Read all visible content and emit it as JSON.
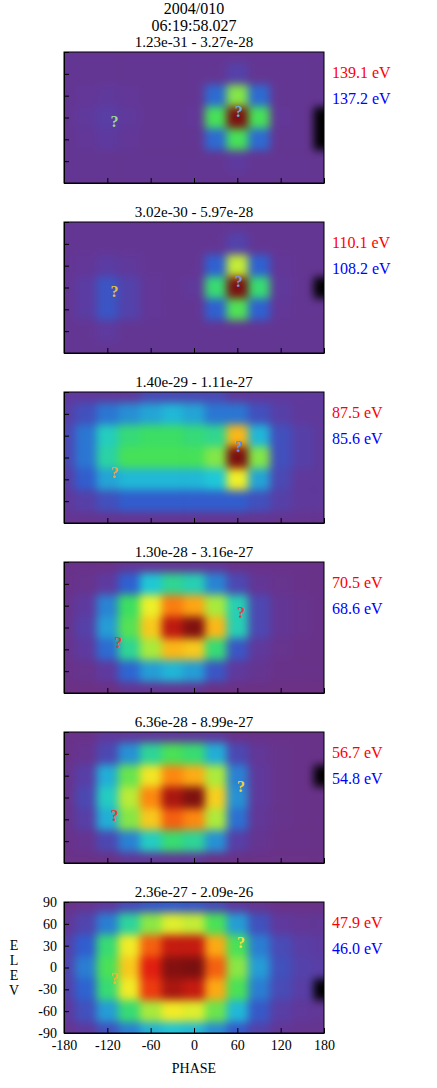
{
  "header": {
    "date": "2004/010",
    "time": "06:19:58.027"
  },
  "chart_data": [
    {
      "type": "heatmap",
      "title": "1.23e-31 - 3.27e-28",
      "zlim": [
        1.23e-31,
        3.27e-28
      ],
      "xlim": [
        -180,
        180
      ],
      "ylim": [
        -90,
        90
      ],
      "xticks": [
        -180,
        -120,
        -60,
        0,
        60,
        120,
        180
      ],
      "yticks": [
        -90,
        -60,
        -30,
        0,
        30,
        60,
        90
      ],
      "tick_labels": false,
      "x": [
        -180,
        -150,
        -120,
        -90,
        -60,
        -30,
        0,
        30,
        60,
        90,
        120,
        150,
        180
      ],
      "y": [
        90,
        60,
        30,
        0,
        -30,
        -60,
        -90
      ],
      "cells": [
        [
          2.5e-31,
          2.5e-31,
          2.5e-31,
          2.5e-31,
          2.5e-31,
          2.5e-31,
          2.5e-31,
          2.5e-31,
          2.5e-31,
          2.5e-31,
          2.5e-31,
          2.5e-31,
          2.5e-31
        ],
        [
          2.5e-31,
          2.5e-31,
          2.5e-31,
          2.5e-31,
          2.5e-31,
          2.5e-31,
          2.5e-31,
          2.5e-31,
          5e-31,
          2.5e-31,
          2.5e-31,
          2.5e-31,
          2.5e-31
        ],
        [
          2.5e-31,
          3e-31,
          3.5e-31,
          3e-31,
          2.5e-31,
          2.5e-31,
          2.5e-31,
          1.5e-30,
          1.5e-29,
          1.5e-30,
          2.5e-31,
          2.5e-31,
          2.5e-31
        ],
        [
          2.5e-31,
          3.5e-31,
          4.5e-31,
          3.5e-31,
          2.5e-31,
          2.5e-31,
          3e-31,
          1e-29,
          3.2e-28,
          1e-29,
          3e-31,
          2.5e-31,
          null
        ],
        [
          2.5e-31,
          3e-31,
          4e-31,
          3e-31,
          2.5e-31,
          2.5e-31,
          2.5e-31,
          1.5e-30,
          1e-29,
          1.5e-30,
          2.5e-31,
          2.5e-31,
          null
        ],
        [
          2.5e-31,
          2.5e-31,
          2.5e-31,
          2.5e-31,
          2.5e-31,
          2.5e-31,
          2.5e-31,
          2.5e-31,
          4e-31,
          2.5e-31,
          2.5e-31,
          2.5e-31,
          2.5e-31
        ],
        [
          2.5e-31,
          2.5e-31,
          2.5e-31,
          2.5e-31,
          2.5e-31,
          2.5e-31,
          2.5e-31,
          2.5e-31,
          2.5e-31,
          2.5e-31,
          2.5e-31,
          2.5e-31,
          2.5e-31
        ]
      ],
      "labels": [
        {
          "text": "139.1 eV",
          "color": "#ff0000"
        },
        {
          "text": "137.2 eV",
          "color": "#0000ff"
        }
      ],
      "annotations": [
        {
          "text": "?",
          "x": -110,
          "y": -5,
          "color": "#a0d890"
        },
        {
          "text": "?",
          "x": 62,
          "y": 8,
          "color": "#70a8e0"
        }
      ]
    },
    {
      "type": "heatmap",
      "title": "3.02e-30 - 5.97e-28",
      "zlim": [
        3.02e-30,
        5.97e-28
      ],
      "xlim": [
        -180,
        180
      ],
      "ylim": [
        -90,
        90
      ],
      "xticks": [
        -180,
        -120,
        -60,
        0,
        60,
        120,
        180
      ],
      "yticks": [
        -90,
        -60,
        -30,
        0,
        30,
        60,
        90
      ],
      "tick_labels": false,
      "x": [
        -180,
        -150,
        -120,
        -90,
        -60,
        -30,
        0,
        30,
        60,
        90,
        120,
        150,
        180
      ],
      "y": [
        90,
        60,
        30,
        0,
        -30,
        -60,
        -90
      ],
      "cells": [
        [
          5e-30,
          5e-30,
          5e-30,
          5e-30,
          5e-30,
          5e-30,
          5e-30,
          5e-30,
          5e-30,
          5e-30,
          5e-30,
          5e-30,
          5e-30
        ],
        [
          5e-30,
          5e-30,
          5e-30,
          5e-30,
          5e-30,
          5e-30,
          5e-30,
          5e-30,
          8e-30,
          5e-30,
          5e-30,
          5e-30,
          5e-30
        ],
        [
          5e-30,
          5.5e-30,
          7e-30,
          6e-30,
          5e-30,
          5e-30,
          5e-30,
          1.5e-29,
          1e-28,
          1.5e-29,
          5.5e-30,
          5e-30,
          5e-30
        ],
        [
          5e-30,
          7e-30,
          1.2e-29,
          8e-30,
          5.5e-30,
          5e-30,
          6e-30,
          5e-29,
          5.9e-28,
          5e-29,
          6e-30,
          5e-30,
          null
        ],
        [
          5e-30,
          7e-30,
          1.2e-29,
          8e-30,
          5.5e-30,
          5e-30,
          5e-30,
          1.5e-29,
          6e-29,
          1.5e-29,
          5.5e-30,
          5e-30,
          5e-30
        ],
        [
          5e-30,
          5e-30,
          6.5e-30,
          5e-30,
          5e-30,
          5e-30,
          5e-30,
          5e-30,
          5e-30,
          5e-30,
          5e-30,
          5e-30,
          5e-30
        ],
        [
          5e-30,
          5e-30,
          5e-30,
          5e-30,
          5e-30,
          5e-30,
          5e-30,
          5e-30,
          5e-30,
          5e-30,
          5e-30,
          5e-30,
          5e-30
        ]
      ],
      "labels": [
        {
          "text": "110.1 eV",
          "color": "#ff0000"
        },
        {
          "text": "108.2 eV",
          "color": "#0000ff"
        }
      ],
      "annotations": [
        {
          "text": "?",
          "x": -110,
          "y": -5,
          "color": "#e0c040"
        },
        {
          "text": "?",
          "x": 62,
          "y": 8,
          "color": "#8090e0"
        }
      ]
    },
    {
      "type": "heatmap",
      "title": "1.40e-29 - 1.11e-27",
      "zlim": [
        1.4e-29,
        1.11e-27
      ],
      "xlim": [
        -180,
        180
      ],
      "ylim": [
        -90,
        90
      ],
      "xticks": [
        -180,
        -120,
        -60,
        0,
        60,
        120,
        180
      ],
      "yticks": [
        -90,
        -60,
        -30,
        0,
        30,
        60,
        90
      ],
      "tick_labels": false,
      "x": [
        -180,
        -150,
        -120,
        -90,
        -60,
        -30,
        0,
        30,
        60,
        90,
        120,
        150,
        180
      ],
      "y": [
        90,
        60,
        30,
        0,
        -30,
        -60,
        -90
      ],
      "cells": [
        [
          2.5e-29,
          2.5e-29,
          2.5e-29,
          2.5e-29,
          3.5e-29,
          3.5e-29,
          3.5e-29,
          3.5e-29,
          2.5e-29,
          2.5e-29,
          2.5e-29,
          2.5e-29,
          2.5e-29
        ],
        [
          3e-29,
          4e-29,
          6e-29,
          7e-29,
          8e-29,
          9e-29,
          8e-29,
          6e-29,
          6e-29,
          4e-29,
          3e-29,
          2.5e-29,
          2.5e-29
        ],
        [
          3.5e-29,
          6e-29,
          1.1e-28,
          1.4e-28,
          1.5e-28,
          1.5e-28,
          1.4e-28,
          1.3e-28,
          4e-28,
          9e-29,
          4e-29,
          3e-29,
          2.5e-29
        ],
        [
          3.5e-29,
          6e-29,
          1.2e-28,
          1.6e-28,
          1.6e-28,
          1.6e-28,
          1.6e-28,
          2e-28,
          1.1e-27,
          2e-28,
          4e-29,
          3e-29,
          2.5e-29
        ],
        [
          3e-29,
          5e-29,
          8e-29,
          9e-29,
          9e-29,
          9e-29,
          9e-29,
          1e-28,
          3e-28,
          8e-29,
          3.5e-29,
          2.5e-29,
          2.5e-29
        ],
        [
          2.5e-29,
          3e-29,
          4e-29,
          5e-29,
          5e-29,
          5e-29,
          5e-29,
          5e-29,
          5e-29,
          4e-29,
          3e-29,
          2.5e-29,
          2.5e-29
        ],
        [
          2e-29,
          2e-29,
          2e-29,
          2e-29,
          2e-29,
          2e-29,
          2e-29,
          2e-29,
          2e-29,
          2e-29,
          2e-29,
          2e-29,
          2e-29
        ]
      ],
      "labels": [
        {
          "text": "87.5 eV",
          "color": "#ff0000"
        },
        {
          "text": "85.6 eV",
          "color": "#0000ff"
        }
      ],
      "annotations": [
        {
          "text": "?",
          "x": -110,
          "y": -20,
          "color": "#f0a040"
        },
        {
          "text": "?",
          "x": 62,
          "y": 15,
          "color": "#6090f0"
        }
      ]
    },
    {
      "type": "heatmap",
      "title": "1.30e-28 - 3.16e-27",
      "zlim": [
        1.3e-28,
        3.16e-27
      ],
      "xlim": [
        -180,
        180
      ],
      "ylim": [
        -90,
        90
      ],
      "xticks": [
        -180,
        -120,
        -60,
        0,
        60,
        120,
        180
      ],
      "yticks": [
        -90,
        -60,
        -30,
        0,
        30,
        60,
        90
      ],
      "tick_labels": false,
      "x": [
        -180,
        -150,
        -120,
        -90,
        -60,
        -30,
        0,
        30,
        60,
        90,
        120,
        150,
        180
      ],
      "y": [
        90,
        60,
        30,
        0,
        -30,
        -60,
        -90
      ],
      "cells": [
        [
          1.5e-28,
          1.5e-28,
          1.5e-28,
          1.8e-28,
          1.8e-28,
          1.8e-28,
          1.8e-28,
          1.8e-28,
          1.5e-28,
          1.5e-28,
          1.5e-28,
          1.5e-28,
          1.5e-28
        ],
        [
          1.5e-28,
          1.6e-28,
          2.1e-28,
          3.4e-28,
          5.5e-28,
          6.5e-28,
          6e-28,
          4e-28,
          2.5e-28,
          1.8e-28,
          1.6e-28,
          1.5e-28,
          1.5e-28
        ],
        [
          1.6e-28,
          2.1e-28,
          4e-28,
          7.4e-28,
          1.2e-27,
          1.8e-27,
          1.6e-27,
          1e-27,
          6e-28,
          2.5e-28,
          1.8e-28,
          1.6e-28,
          1.5e-28
        ],
        [
          1.6e-28,
          2.3e-28,
          4.5e-28,
          8e-28,
          1.4e-27,
          2.6e-27,
          3.1e-27,
          1.5e-27,
          6e-28,
          2.5e-28,
          1.8e-28,
          1.6e-28,
          1.5e-28
        ],
        [
          1.6e-28,
          2.1e-28,
          3.6e-28,
          6.5e-28,
          1e-27,
          1.5e-27,
          1.4e-27,
          7e-28,
          3e-28,
          2e-28,
          1.6e-28,
          1.5e-28,
          1.5e-28
        ],
        [
          1.5e-28,
          1.6e-28,
          2.1e-28,
          3.5e-28,
          4.5e-28,
          5e-28,
          4.5e-28,
          3e-28,
          2e-28,
          1.7e-28,
          1.5e-28,
          1.5e-28,
          1.5e-28
        ],
        [
          1.4e-28,
          1.4e-28,
          1.4e-28,
          1.7e-28,
          1.7e-28,
          1.7e-28,
          1.7e-28,
          1.4e-28,
          1.4e-28,
          1.4e-28,
          1.4e-28,
          1.4e-28,
          1.4e-28
        ]
      ],
      "labels": [
        {
          "text": "70.5 eV",
          "color": "#ff0000"
        },
        {
          "text": "68.6 eV",
          "color": "#0000ff"
        }
      ],
      "annotations": [
        {
          "text": "?",
          "x": -105,
          "y": -20,
          "color": "#e04040"
        },
        {
          "text": "?",
          "x": 65,
          "y": 20,
          "color": "#e04050"
        }
      ]
    },
    {
      "type": "heatmap",
      "title": "6.36e-28 - 8.99e-27",
      "zlim": [
        6.36e-28,
        8.99e-27
      ],
      "xlim": [
        -180,
        180
      ],
      "ylim": [
        -90,
        90
      ],
      "xticks": [
        -180,
        -120,
        -60,
        0,
        60,
        120,
        180
      ],
      "yticks": [
        -90,
        -60,
        -30,
        0,
        30,
        60,
        90
      ],
      "tick_labels": false,
      "x": [
        -180,
        -150,
        -120,
        -90,
        -60,
        -30,
        0,
        30,
        60,
        90,
        120,
        150,
        180
      ],
      "y": [
        90,
        60,
        30,
        0,
        -30,
        -60,
        -90
      ],
      "cells": [
        [
          7.2e-28,
          7.2e-28,
          9e-28,
          9e-28,
          9e-28,
          9e-28,
          9e-28,
          9e-28,
          7.2e-28,
          7.2e-28,
          7.2e-28,
          7.2e-28,
          7.2e-28
        ],
        [
          7.2e-28,
          8e-28,
          1.1e-27,
          1.7e-27,
          2.4e-27,
          2.8e-27,
          2.6e-27,
          1.9e-27,
          1.1e-27,
          8.5e-28,
          7.5e-28,
          7.2e-28,
          7.2e-28
        ],
        [
          7.5e-28,
          1e-27,
          1.9e-27,
          3e-27,
          4.2e-27,
          5.5e-27,
          5e-27,
          3.5e-27,
          1.6e-27,
          9e-28,
          7.5e-28,
          7.2e-28,
          null
        ],
        [
          7.5e-28,
          1.1e-27,
          2.2e-27,
          3.6e-27,
          5.5e-27,
          8e-27,
          8.9e-27,
          4.5e-27,
          1.7e-27,
          9e-28,
          7.5e-28,
          7.2e-28,
          7.2e-28
        ],
        [
          7.5e-28,
          1e-27,
          1.9e-27,
          3.2e-27,
          4.6e-27,
          6e-27,
          5.5e-27,
          3.5e-27,
          1.5e-27,
          8.5e-28,
          7.5e-28,
          7.2e-28,
          7.2e-28
        ],
        [
          7.2e-28,
          8e-28,
          1.1e-27,
          1.6e-27,
          2.2e-27,
          2.6e-27,
          2.4e-27,
          1.7e-27,
          1e-27,
          8e-28,
          7.2e-28,
          7.2e-28,
          7.2e-28
        ],
        [
          7e-28,
          7e-28,
          7e-28,
          8.5e-28,
          8.5e-28,
          8.5e-28,
          8.5e-28,
          7e-28,
          7e-28,
          7e-28,
          7e-28,
          7e-28,
          7e-28
        ]
      ],
      "labels": [
        {
          "text": "56.7 eV",
          "color": "#ff0000"
        },
        {
          "text": "54.8 eV",
          "color": "#0000ff"
        }
      ],
      "annotations": [
        {
          "text": "?",
          "x": -110,
          "y": -25,
          "color": "#e04040"
        },
        {
          "text": "?",
          "x": 65,
          "y": 15,
          "color": "#f0d040"
        }
      ]
    },
    {
      "type": "heatmap",
      "title": "2.36e-27 - 2.09e-26",
      "zlim": [
        2.36e-27,
        2.09e-26
      ],
      "xlim": [
        -180,
        180
      ],
      "ylim": [
        -90,
        90
      ],
      "xticks": [
        -180,
        -120,
        -60,
        0,
        60,
        120,
        180
      ],
      "yticks": [
        -90,
        -60,
        -30,
        0,
        30,
        60,
        90
      ],
      "x_label": "PHASE",
      "y_label": "ELEV",
      "x": [
        -180,
        -150,
        -120,
        -90,
        -60,
        -30,
        0,
        30,
        60,
        90,
        120,
        150,
        180
      ],
      "y": [
        90,
        60,
        30,
        0,
        -30,
        -60,
        -90
      ],
      "cells": [
        [
          2.6e-27,
          2.8e-27,
          3.2e-27,
          3.8e-27,
          4.2e-27,
          4.4e-27,
          4.2e-27,
          3.8e-27,
          3.2e-27,
          2.8e-27,
          2.6e-27,
          2.6e-27,
          2.6e-27
        ],
        [
          3e-27,
          3.6e-27,
          5e-27,
          7e-27,
          9e-27,
          1.05e-26,
          1e-26,
          8e-27,
          5.5e-27,
          4e-27,
          3.2e-27,
          3e-27,
          3e-27
        ],
        [
          3.5e-27,
          4.5e-27,
          7.5e-27,
          1.1e-26,
          1.5e-26,
          1.8e-26,
          1.8e-26,
          1.3e-26,
          8e-27,
          5e-27,
          3.8e-27,
          3.4e-27,
          3.3e-27
        ],
        [
          3.6e-27,
          5e-27,
          8e-27,
          1.2e-26,
          1.7e-26,
          2.05e-26,
          2.09e-26,
          1.5e-26,
          9e-27,
          5.5e-27,
          4e-27,
          3.5e-27,
          3.4e-27
        ],
        [
          3.5e-27,
          4.6e-27,
          7.5e-27,
          1.1e-26,
          1.6e-26,
          1.9e-26,
          1.8e-26,
          1.3e-26,
          8e-27,
          5e-27,
          3.8e-27,
          3.4e-27,
          null
        ],
        [
          3.2e-27,
          4e-27,
          5.5e-27,
          7.5e-27,
          9.5e-27,
          1.1e-26,
          1.05e-26,
          8.5e-27,
          6e-27,
          4.3e-27,
          3.4e-27,
          3.1e-27,
          3e-27
        ],
        [
          2.8e-27,
          3.2e-27,
          4e-27,
          5e-27,
          5.8e-27,
          6.2e-27,
          6e-27,
          5.2e-27,
          4.3e-27,
          3.5e-27,
          3e-27,
          2.8e-27,
          2.8e-27
        ]
      ],
      "labels": [
        {
          "text": "47.9 eV",
          "color": "#ff0000"
        },
        {
          "text": "46.0 eV",
          "color": "#0000ff"
        }
      ],
      "annotations": [
        {
          "text": "?",
          "x": -110,
          "y": -15,
          "color": "#f0b030"
        },
        {
          "text": "?",
          "x": 65,
          "y": 35,
          "color": "#f0e040"
        }
      ]
    }
  ]
}
